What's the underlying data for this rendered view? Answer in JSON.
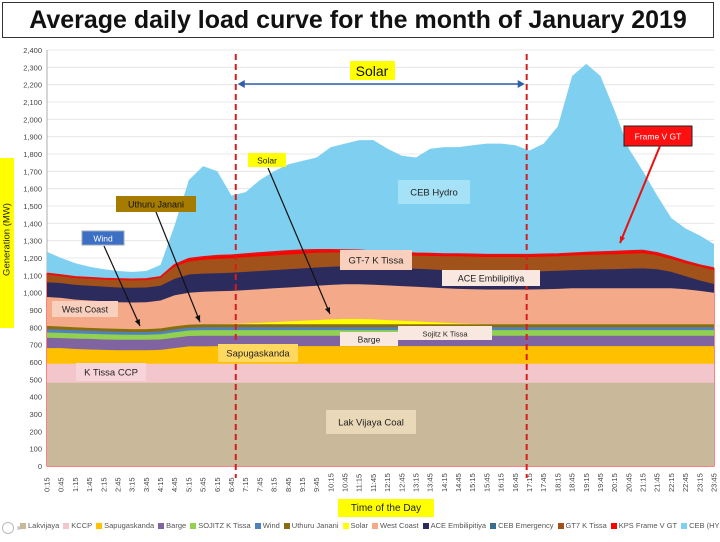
{
  "title": "Average daily load curve for the month of January 2019",
  "chart_data": {
    "type": "area",
    "ylabel": "Generation (MW)",
    "xlabel": "Time of the Day",
    "ylim": [
      0,
      2400
    ],
    "yticks": [
      0,
      100,
      200,
      300,
      400,
      500,
      600,
      700,
      800,
      900,
      1000,
      1100,
      1200,
      1300,
      1400,
      1500,
      1600,
      1700,
      1800,
      1900,
      2000,
      2100,
      2200,
      2300,
      2400
    ],
    "ytick_labels": [
      "0",
      "100",
      "200",
      "300",
      "400",
      "500",
      "600",
      "700",
      "800",
      "900",
      "1,000",
      "1,100",
      "1,200",
      "1,300",
      "1,400",
      "1,500",
      "1,600",
      "1,700",
      "1,800",
      "1,900",
      "2,000",
      "2,100",
      "2,200",
      "2,300",
      "2,400"
    ],
    "x": [
      "0:15",
      "0:45",
      "1:15",
      "1:45",
      "2:15",
      "2:45",
      "3:15",
      "3:45",
      "4:15",
      "4:45",
      "5:15",
      "5:45",
      "6:15",
      "6:45",
      "7:15",
      "7:45",
      "8:15",
      "8:45",
      "9:15",
      "9:45",
      "10:15",
      "10:45",
      "11:15",
      "11:45",
      "12:15",
      "12:45",
      "13:15",
      "13:45",
      "14:15",
      "14:45",
      "15:15",
      "15:45",
      "16:15",
      "16:45",
      "17:15",
      "17:45",
      "18:15",
      "18:45",
      "19:15",
      "19:45",
      "20:15",
      "20:45",
      "21:15",
      "21:45",
      "22:15",
      "22:45",
      "23:15",
      "23:45"
    ],
    "stack_tops": {
      "Lakvijaya": [
        480,
        480,
        480,
        480,
        480,
        480,
        480,
        480,
        480,
        480,
        480,
        480,
        480,
        480,
        480,
        480,
        480,
        480,
        480,
        480,
        480,
        480,
        480,
        480,
        480,
        480,
        480,
        480,
        480,
        480,
        480,
        480,
        480,
        480,
        480,
        480,
        480,
        480,
        480,
        480,
        480,
        480,
        480,
        480,
        480,
        480,
        480,
        480
      ],
      "KCCP": [
        590,
        590,
        590,
        590,
        590,
        590,
        590,
        590,
        590,
        590,
        590,
        590,
        590,
        590,
        590,
        590,
        590,
        590,
        590,
        590,
        590,
        590,
        590,
        590,
        590,
        590,
        590,
        590,
        590,
        590,
        590,
        590,
        590,
        590,
        590,
        590,
        590,
        590,
        590,
        590,
        590,
        590,
        590,
        590,
        590,
        590,
        590,
        590
      ],
      "Sapugaskanda": [
        680,
        680,
        675,
        672,
        670,
        668,
        668,
        668,
        670,
        680,
        690,
        690,
        692,
        692,
        692,
        692,
        692,
        692,
        692,
        692,
        692,
        692,
        692,
        692,
        692,
        692,
        692,
        692,
        692,
        692,
        692,
        692,
        692,
        692,
        692,
        692,
        692,
        692,
        692,
        692,
        692,
        692,
        692,
        692,
        692,
        692,
        692,
        692
      ],
      "Barge": [
        740,
        738,
        735,
        733,
        730,
        728,
        728,
        728,
        730,
        740,
        750,
        752,
        752,
        752,
        752,
        752,
        752,
        752,
        752,
        752,
        752,
        752,
        752,
        752,
        752,
        752,
        752,
        752,
        752,
        752,
        752,
        752,
        752,
        752,
        752,
        752,
        752,
        752,
        752,
        752,
        752,
        752,
        752,
        752,
        752,
        752,
        752,
        752
      ],
      "SOJITZ K Tissa": [
        770,
        768,
        765,
        762,
        760,
        758,
        757,
        757,
        760,
        772,
        782,
        784,
        784,
        784,
        784,
        784,
        784,
        784,
        784,
        784,
        784,
        784,
        784,
        784,
        784,
        784,
        784,
        784,
        784,
        784,
        784,
        784,
        784,
        784,
        784,
        784,
        784,
        784,
        784,
        784,
        784,
        784,
        784,
        784,
        784,
        784,
        784,
        784
      ],
      "Wind": [
        790,
        787,
        783,
        780,
        777,
        775,
        773,
        773,
        776,
        788,
        798,
        800,
        800,
        800,
        800,
        800,
        800,
        800,
        800,
        800,
        800,
        800,
        800,
        800,
        800,
        800,
        800,
        800,
        800,
        800,
        800,
        800,
        800,
        800,
        800,
        800,
        800,
        800,
        800,
        800,
        800,
        800,
        800,
        800,
        800,
        800,
        800,
        800
      ],
      "Uthuru Janani": [
        808,
        805,
        800,
        797,
        794,
        792,
        790,
        790,
        794,
        806,
        816,
        818,
        818,
        818,
        818,
        818,
        818,
        818,
        818,
        818,
        818,
        818,
        818,
        818,
        818,
        818,
        818,
        818,
        818,
        818,
        818,
        818,
        818,
        818,
        818,
        818,
        818,
        818,
        818,
        818,
        818,
        818,
        818,
        818,
        818,
        818,
        818,
        818
      ],
      "Solar": [
        808,
        805,
        800,
        797,
        794,
        792,
        790,
        790,
        794,
        806,
        816,
        818,
        818,
        820,
        822,
        826,
        830,
        834,
        838,
        842,
        846,
        848,
        848,
        846,
        842,
        838,
        834,
        830,
        826,
        822,
        820,
        818,
        818,
        818,
        818,
        818,
        818,
        818,
        818,
        818,
        818,
        818,
        818,
        818,
        818,
        818,
        818,
        818
      ],
      "West Coast": [
        975,
        970,
        960,
        955,
        950,
        945,
        943,
        945,
        955,
        985,
        1000,
        1005,
        1008,
        1010,
        1015,
        1020,
        1025,
        1030,
        1035,
        1040,
        1045,
        1048,
        1048,
        1046,
        1042,
        1038,
        1034,
        1030,
        1026,
        1022,
        1020,
        1018,
        1018,
        1018,
        1018,
        1020,
        1022,
        1025,
        1025,
        1025,
        1025,
        1025,
        1025,
        1025,
        1025,
        1020,
        1010,
        1000
      ],
      "ACE Embilipitiya": [
        1060,
        1055,
        1045,
        1040,
        1035,
        1030,
        1028,
        1030,
        1040,
        1080,
        1105,
        1110,
        1112,
        1115,
        1120,
        1125,
        1130,
        1135,
        1140,
        1145,
        1150,
        1152,
        1152,
        1150,
        1146,
        1142,
        1138,
        1134,
        1130,
        1126,
        1124,
        1122,
        1122,
        1122,
        1122,
        1124,
        1126,
        1130,
        1132,
        1134,
        1136,
        1138,
        1140,
        1135,
        1120,
        1095,
        1070,
        1050
      ],
      "GT7 K Tissa": [
        1110,
        1100,
        1090,
        1085,
        1080,
        1078,
        1076,
        1078,
        1090,
        1150,
        1180,
        1190,
        1195,
        1198,
        1205,
        1210,
        1215,
        1220,
        1225,
        1230,
        1232,
        1232,
        1230,
        1225,
        1222,
        1218,
        1214,
        1212,
        1210,
        1210,
        1208,
        1206,
        1206,
        1206,
        1206,
        1208,
        1210,
        1215,
        1218,
        1220,
        1222,
        1225,
        1228,
        1215,
        1195,
        1170,
        1150,
        1130
      ],
      "KPS Frame V GT": [
        1110,
        1100,
        1090,
        1085,
        1080,
        1078,
        1076,
        1078,
        1090,
        1160,
        1195,
        1205,
        1212,
        1215,
        1222,
        1228,
        1234,
        1240,
        1244,
        1246,
        1246,
        1245,
        1243,
        1238,
        1234,
        1230,
        1226,
        1224,
        1222,
        1222,
        1220,
        1218,
        1218,
        1218,
        1218,
        1220,
        1222,
        1226,
        1230,
        1233,
        1236,
        1240,
        1242,
        1228,
        1205,
        1180,
        1158,
        1140
      ],
      "CEB (HYDRO)": [
        1235,
        1200,
        1170,
        1150,
        1135,
        1125,
        1120,
        1125,
        1160,
        1390,
        1650,
        1730,
        1700,
        1560,
        1580,
        1650,
        1700,
        1740,
        1760,
        1780,
        1840,
        1860,
        1880,
        1880,
        1830,
        1790,
        1780,
        1830,
        1840,
        1840,
        1850,
        1860,
        1860,
        1850,
        1820,
        1860,
        1960,
        2250,
        2320,
        2250,
        2050,
        1830,
        1700,
        1560,
        1430,
        1370,
        1330,
        1280
      ]
    },
    "series_order": [
      "Lakvijaya",
      "KCCP",
      "Sapugaskanda",
      "Barge",
      "SOJITZ K Tissa",
      "Wind",
      "Uthuru Janani",
      "Solar",
      "West Coast",
      "ACE Embilipitiya",
      "CEB Emergency",
      "GT7 K Tissa",
      "KPS Frame V GT",
      "CEB (HYDRO)"
    ],
    "colors": {
      "Lakvijaya": "#c9b99a",
      "KCCP": "#f3c6cc",
      "Sapugaskanda": "#ffc000",
      "Barge": "#8064a2",
      "SOJITZ K Tissa": "#92d050",
      "Wind": "#4f81bd",
      "Uthuru Janani": "#8a6d12",
      "Solar": "#ffff00",
      "West Coast": "#f4a988",
      "ACE Embilipitiya": "#2b2b5e",
      "CEB Emergency": "#3a6e8f",
      "GT7 K Tissa": "#a0521a",
      "KPS Frame V GT": "#ff0000",
      "CEB (HYDRO)": "#7fd0f0"
    },
    "legend": [
      "Lakvijaya",
      "KCCP",
      "Sapugaskanda",
      "Barge",
      "SOJITZ K Tissa",
      "Wind",
      "Uthuru Janani",
      "Solar",
      "West Coast",
      "ACE Embilipitiya",
      "CEB Emergency",
      "GT7 K Tissa",
      "KPS Frame V GT",
      "CEB (HYDRO)"
    ],
    "solar_window_label": "Solar",
    "annotations": {
      "lak_vijaya": "Lak Vijaya Coal",
      "k_tissa_ccp": "K Tissa CCP",
      "sapugaskanda": "Sapugaskanda",
      "barge": "Barge",
      "sojitz": "Sojitz K Tissa",
      "west_coast": "West Coast",
      "ace": "ACE Embilipitiya",
      "gt7": "GT-7 K Tissa",
      "ceb_hydro": "CEB Hydro",
      "solar": "Solar",
      "wind": "Wind",
      "uthuru": "Uthuru Janani",
      "frame_v": "Frame V GT"
    }
  }
}
